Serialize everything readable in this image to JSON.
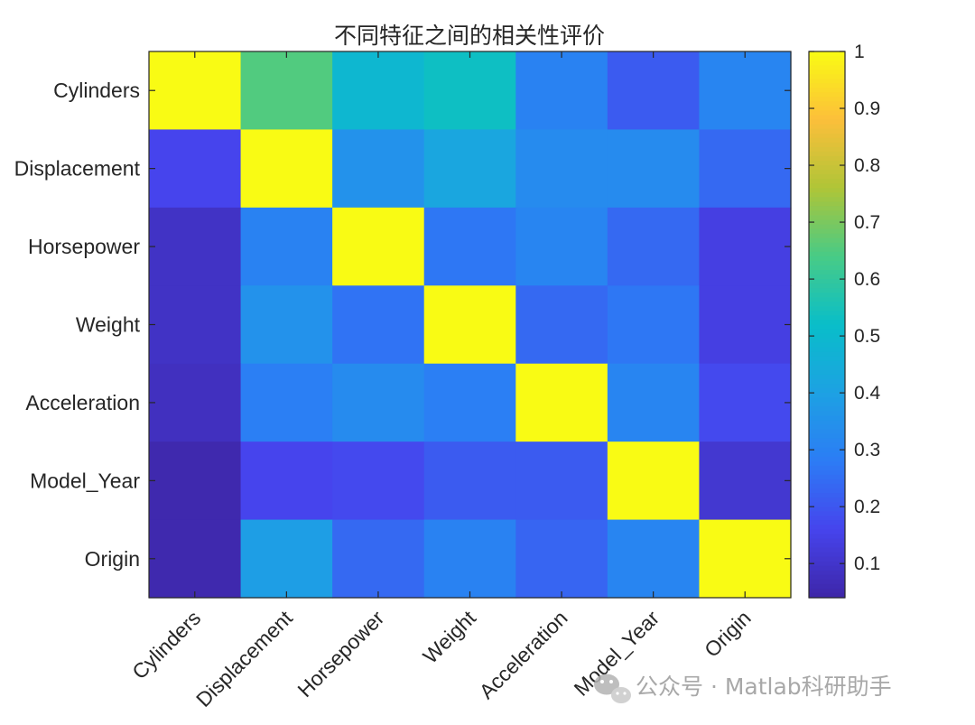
{
  "chart_data": {
    "type": "heatmap",
    "title": "不同特征之间的相关性评价",
    "row_labels": [
      "Cylinders",
      "Displacement",
      "Horsepower",
      "Weight",
      "Acceleration",
      "Model_Year",
      "Origin"
    ],
    "column_labels": [
      "Cylinders",
      "Displacement",
      "Horsepower",
      "Weight",
      "Acceleration",
      "Model_Year",
      "Origin"
    ],
    "values": [
      [
        1.0,
        0.65,
        0.49,
        0.53,
        0.3,
        0.21,
        0.31
      ],
      [
        0.16,
        1.0,
        0.35,
        0.42,
        0.33,
        0.33,
        0.24
      ],
      [
        0.09,
        0.3,
        1.0,
        0.27,
        0.31,
        0.24,
        0.14
      ],
      [
        0.09,
        0.35,
        0.26,
        1.0,
        0.24,
        0.27,
        0.14
      ],
      [
        0.08,
        0.29,
        0.33,
        0.29,
        1.0,
        0.31,
        0.17
      ],
      [
        0.05,
        0.16,
        0.17,
        0.21,
        0.21,
        1.0,
        0.11
      ],
      [
        0.05,
        0.39,
        0.24,
        0.3,
        0.23,
        0.31,
        1.0
      ]
    ],
    "colormap": "parula",
    "clim": [
      0.04,
      1.0
    ],
    "colorbar": {
      "ticks": [
        0.1,
        0.2,
        0.3,
        0.4,
        0.5,
        0.6,
        0.7,
        0.8,
        0.9,
        1
      ],
      "tick_labels": [
        "0.1",
        "0.2",
        "0.3",
        "0.4",
        "0.5",
        "0.6",
        "0.7",
        "0.8",
        "0.9",
        "1"
      ],
      "placement": "right"
    },
    "xlabel": "",
    "ylabel": ""
  },
  "watermark": {
    "text": "公众号 · Matlab科研助手",
    "icon": "wechat-icon"
  },
  "colors": {
    "axis": "#262626",
    "watermark": "#9a9a9a",
    "background": "#ffffff"
  }
}
